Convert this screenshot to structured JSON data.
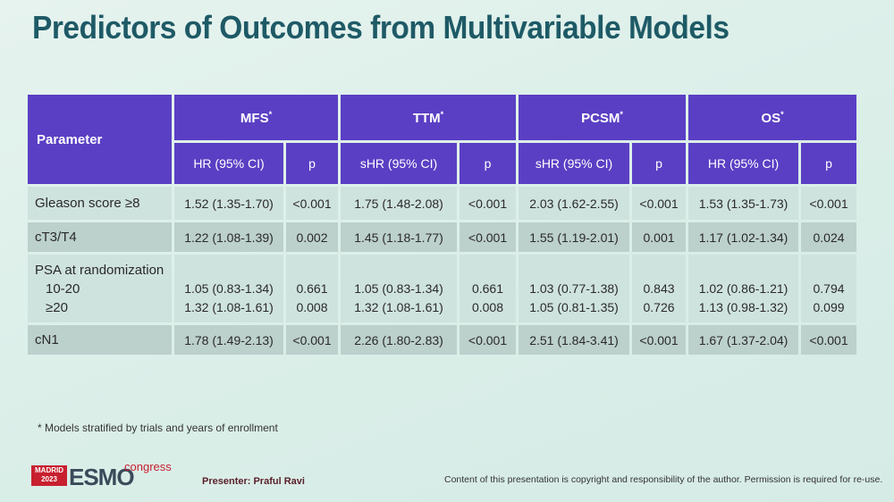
{
  "title": "Predictors of Outcomes from Multivariable Models",
  "table": {
    "param_header": "Parameter",
    "groups": [
      {
        "name": "MFS",
        "sup": "*",
        "est_label": "HR (95% CI)",
        "p_label": "p"
      },
      {
        "name": "TTM",
        "sup": "*",
        "est_label": "sHR (95% CI)",
        "p_label": "p"
      },
      {
        "name": "PCSM",
        "sup": "*",
        "est_label": "sHR (95% CI)",
        "p_label": "p"
      },
      {
        "name": "OS",
        "sup": "*",
        "est_label": "HR (95% CI)",
        "p_label": "p"
      }
    ],
    "rows": [
      {
        "label": "Gleason score ≥8",
        "cells": [
          "1.52 (1.35-1.70)",
          "<0.001",
          "1.75 (1.48-2.08)",
          "<0.001",
          "2.03 (1.62-2.55)",
          "<0.001",
          "1.53 (1.35-1.73)",
          "<0.001"
        ]
      },
      {
        "label": "cT3/T4",
        "cells": [
          "1.22 (1.08-1.39)",
          "0.002",
          "1.45 (1.18-1.77)",
          "<0.001",
          "1.55 (1.19-2.01)",
          "0.001",
          "1.17 (1.02-1.34)",
          "0.024"
        ]
      },
      {
        "label": "PSA at randomization",
        "sub1": "10-20",
        "sub2": "≥20",
        "cells1": [
          "1.05 (0.83-1.34)",
          "0.661",
          "1.05 (0.83-1.34)",
          "0.661",
          "1.03 (0.77-1.38)",
          "0.843",
          "1.02 (0.86-1.21)",
          "0.794"
        ],
        "cells2": [
          "1.32 (1.08-1.61)",
          "0.008",
          "1.32 (1.08-1.61)",
          "0.008",
          "1.05 (0.81-1.35)",
          "0.726",
          "1.13 (0.98-1.32)",
          "0.099"
        ]
      },
      {
        "label": "cN1",
        "cells": [
          "1.78 (1.49-2.13)",
          "<0.001",
          "2.26 (1.80-2.83)",
          "<0.001",
          "2.51 (1.84-3.41)",
          "<0.001",
          "1.67 (1.37-2.04)",
          "<0.001"
        ]
      }
    ]
  },
  "footnote": "* Models stratified by trials and years of enrollment",
  "logo": {
    "city": "MADRID",
    "year": "2023",
    "brand": "ESMO",
    "suffix": "congress"
  },
  "presenter": "Presenter: Praful Ravi",
  "copyright": "Content of this presentation is copyright and responsibility of the author. Permission is required for re-use."
}
